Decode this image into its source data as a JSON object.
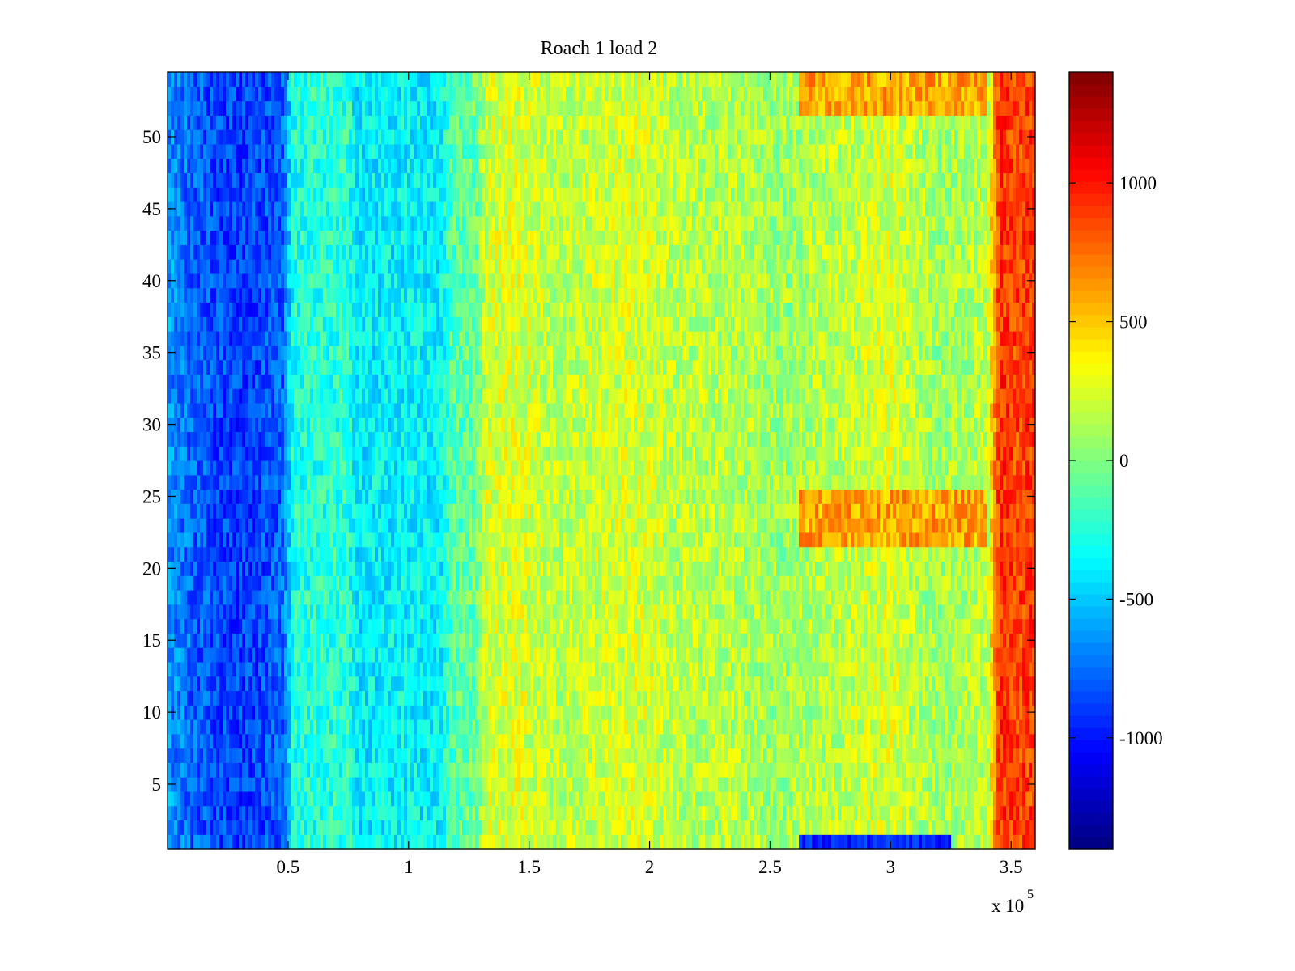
{
  "chart_data": {
    "type": "heatmap",
    "title": "Roach 1 load 2",
    "xlabel": "",
    "ylabel": "",
    "x_range": [
      0,
      360000
    ],
    "y_range": [
      0.5,
      54.5
    ],
    "n_rows": 54,
    "colormap": "jet",
    "color_range": [
      -1400,
      1400
    ],
    "x_ticks": [
      0.5,
      1,
      1.5,
      2,
      2.5,
      3,
      3.5
    ],
    "x_tick_labels": [
      "0.5",
      "1",
      "1.5",
      "2",
      "2.5",
      "3",
      "3.5"
    ],
    "x_multiplier_base": "x 10",
    "x_multiplier_exponent": "5",
    "y_ticks": [
      5,
      10,
      15,
      20,
      25,
      30,
      35,
      40,
      45,
      50
    ],
    "y_tick_labels": [
      "5",
      "10",
      "15",
      "20",
      "25",
      "30",
      "35",
      "40",
      "45",
      "50"
    ],
    "colorbar_ticks": [
      -1000,
      -500,
      0,
      500,
      1000
    ],
    "colorbar_tick_labels": [
      "-1000",
      "-500",
      "0",
      "500",
      "1000"
    ],
    "column_profile": {
      "x": [
        0,
        10000,
        25000,
        35000,
        48000,
        52000,
        75000,
        78000,
        100000,
        113000,
        118000,
        128000,
        132000,
        145000,
        160000,
        175000,
        195000,
        215000,
        235000,
        255000,
        265000,
        280000,
        300000,
        320000,
        340000,
        345000,
        352000,
        360000
      ],
      "mean": [
        -640,
        -780,
        -880,
        -880,
        -780,
        -280,
        -230,
        -400,
        -360,
        -380,
        -120,
        -60,
        220,
        260,
        160,
        200,
        240,
        150,
        150,
        70,
        120,
        170,
        240,
        80,
        160,
        930,
        860,
        900
      ]
    },
    "hot_band": {
      "x_range": [
        262000,
        340000
      ],
      "row_ranges": [
        [
          52,
          54
        ],
        [
          22,
          25
        ]
      ],
      "mean": 600
    },
    "cold_strip": {
      "x_range": [
        262000,
        325000
      ],
      "rows": [
        1
      ],
      "mean": -950
    },
    "noise_amplitude": 200
  }
}
